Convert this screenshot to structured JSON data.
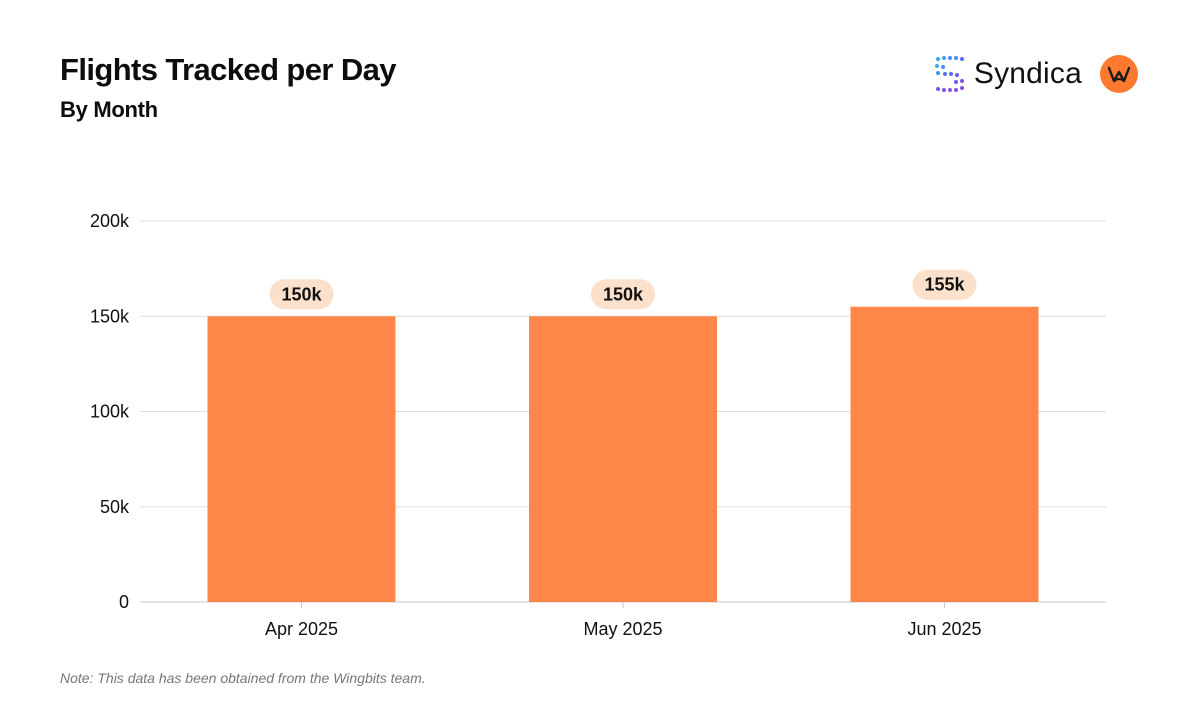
{
  "header": {
    "title": "Flights Tracked per Day",
    "subtitle": "By Month"
  },
  "brand": {
    "name": "Syndica",
    "mark_icon": "syndica-dots-logo-icon",
    "partner_icon": "wingbits-logo-icon",
    "mark_colors": [
      "#3aa8f5",
      "#5b6cf0",
      "#8a4fe8"
    ],
    "partner_color": "#ff7a2f"
  },
  "footnote": "Note: This data has been obtained from the Wingbits team.",
  "colors": {
    "bar": "#ff8649",
    "label_pill": "#fbe0cc",
    "grid": "#dddddd",
    "axis_text": "#111111"
  },
  "chart_data": {
    "type": "bar",
    "categories": [
      "Apr 2025",
      "May 2025",
      "Jun 2025"
    ],
    "values": [
      150000,
      150000,
      155000
    ],
    "data_labels": [
      "150k",
      "150k",
      "155k"
    ],
    "y_ticks": [
      0,
      50000,
      100000,
      150000,
      200000
    ],
    "y_tick_labels": [
      "0",
      "50k",
      "100k",
      "150k",
      "200k"
    ],
    "ylim": [
      0,
      200000
    ],
    "grid": true,
    "legend": "none",
    "title": "Flights Tracked per Day",
    "subtitle": "By Month",
    "xlabel": "",
    "ylabel": ""
  }
}
